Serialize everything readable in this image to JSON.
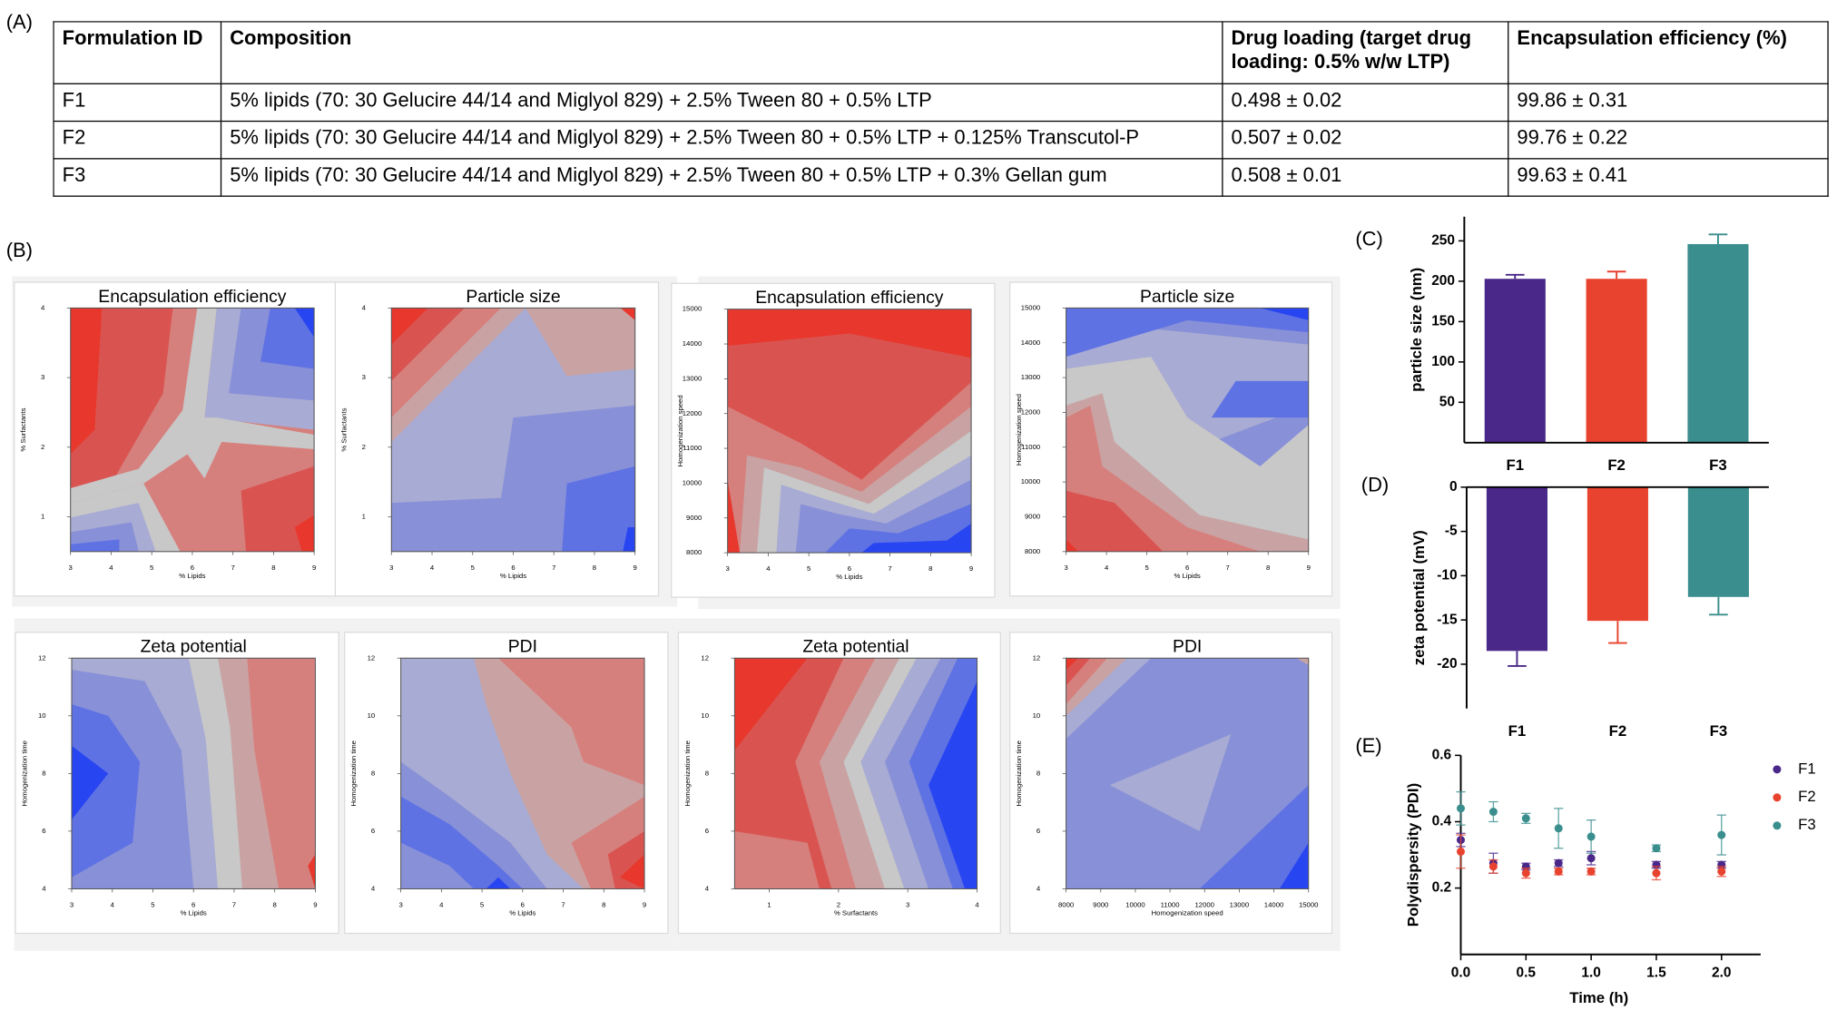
{
  "panel_labels": [
    "(A)",
    "(B)",
    "(C)",
    "(D)",
    "(E)"
  ],
  "table": {
    "header": [
      "Formulation ID",
      "Composition",
      "Drug loading (target drug loading: 0.5% w/w LTP)",
      "Encapsulation efficiency (%)"
    ],
    "rows": [
      [
        "F1",
        "5% lipids (70: 30 Gelucire 44/14 and Miglyol 829) + 2.5% Tween 80 + 0.5% LTP",
        "0.498 ± 0.02",
        "99.86 ± 0.31"
      ],
      [
        "F2",
        "5% lipids (70: 30 Gelucire 44/14 and Miglyol 829) + 2.5% Tween 80 + 0.5% LTP + 0.125% Transcutol-P",
        "0.507 ± 0.02",
        "99.76 ± 0.22"
      ],
      [
        "F3",
        "5% lipids (70: 30 Gelucire 44/14 and Miglyol 829) + 2.5% Tween 80 + 0.5% LTP + 0.3% Gellan gum",
        "0.508 ± 0.01",
        "99.63 ± 0.41"
      ]
    ]
  },
  "chart_data": [
    {
      "type": "contour",
      "title": "Encapsulation efficiency",
      "xlabel": "% Lipids",
      "ylabel": "% Surfactants",
      "xlim": [
        3,
        9
      ],
      "ylim": [
        0.5,
        4
      ],
      "xticks": [
        3,
        4,
        5,
        6,
        7,
        8,
        9
      ],
      "yticks": [
        1,
        2,
        3,
        4
      ]
    },
    {
      "type": "contour",
      "title": "Particle size",
      "xlabel": "% Lipids",
      "ylabel": "% Surfactants",
      "xlim": [
        3,
        9
      ],
      "ylim": [
        0.5,
        4
      ],
      "xticks": [
        3,
        4,
        5,
        6,
        7,
        8,
        9
      ],
      "yticks": [
        1,
        2,
        3,
        4
      ]
    },
    {
      "type": "contour",
      "title": "Encapsulation efficiency",
      "xlabel": "% Lipids",
      "ylabel": "Homogenization speed",
      "xlim": [
        3,
        9
      ],
      "ylim": [
        8000,
        15000
      ],
      "xticks": [
        3,
        4,
        5,
        6,
        7,
        8,
        9
      ],
      "yticks": [
        8000,
        9000,
        10000,
        11000,
        12000,
        13000,
        14000,
        15000
      ]
    },
    {
      "type": "contour",
      "title": "Particle size",
      "xlabel": "% Lipids",
      "ylabel": "Homogenization speed",
      "xlim": [
        3,
        9
      ],
      "ylim": [
        8000,
        15000
      ],
      "xticks": [
        3,
        4,
        5,
        6,
        7,
        8,
        9
      ],
      "yticks": [
        8000,
        9000,
        10000,
        11000,
        12000,
        13000,
        14000,
        15000
      ]
    },
    {
      "type": "contour",
      "title": "Zeta potential",
      "xlabel": "% Lipids",
      "ylabel": "Homogenization time",
      "xlim": [
        3,
        9
      ],
      "ylim": [
        4,
        12
      ],
      "xticks": [
        3,
        4,
        5,
        6,
        7,
        8,
        9
      ],
      "yticks": [
        4,
        6,
        8,
        10,
        12
      ]
    },
    {
      "type": "contour",
      "title": "PDI",
      "xlabel": "% Lipids",
      "ylabel": "Homogenization time",
      "xlim": [
        3,
        9
      ],
      "ylim": [
        4,
        12
      ],
      "xticks": [
        3,
        4,
        5,
        6,
        7,
        8,
        9
      ],
      "yticks": [
        4,
        6,
        8,
        10,
        12
      ]
    },
    {
      "type": "contour",
      "title": "Zeta potential",
      "xlabel": "% Surfactants",
      "ylabel": "Homogenization time",
      "xlim": [
        0.5,
        4
      ],
      "ylim": [
        4,
        12
      ],
      "xticks": [
        1,
        2,
        3,
        4
      ],
      "yticks": [
        4,
        6,
        8,
        10,
        12
      ]
    },
    {
      "type": "contour",
      "title": "PDI",
      "xlabel": "Homogenization speed",
      "ylabel": "Homogenization time",
      "xlim": [
        8000,
        15000
      ],
      "ylim": [
        4,
        12
      ],
      "xticks": [
        8000,
        9000,
        10000,
        11000,
        12000,
        13000,
        14000,
        15000
      ],
      "yticks": [
        4,
        6,
        8,
        10,
        12
      ]
    },
    {
      "type": "bar",
      "ylabel": "particle size (nm)",
      "categories": [
        "F1",
        "F2",
        "F3"
      ],
      "values": [
        203,
        203,
        246
      ],
      "errors": [
        5,
        9,
        12
      ],
      "colors": [
        "#4a2889",
        "#e8432e",
        "#3b8e8e"
      ],
      "ylim": [
        0,
        280
      ],
      "yticks": [
        50,
        100,
        150,
        200,
        250
      ]
    },
    {
      "type": "bar",
      "ylabel": "zeta potential (mV)",
      "categories": [
        "F1",
        "F2",
        "F3"
      ],
      "values": [
        -18.5,
        -15.1,
        -12.4
      ],
      "errors": [
        1.7,
        2.5,
        2.0
      ],
      "colors": [
        "#4a2889",
        "#e8432e",
        "#3b8e8e"
      ],
      "ylim": [
        -25,
        0
      ],
      "yticks": [
        0,
        -5,
        -10,
        -15,
        -20
      ]
    },
    {
      "type": "scatter",
      "xlabel": "Time (h)",
      "ylabel": "Polydispersity (PDI)",
      "legend": "right",
      "x": [
        0,
        0.25,
        0.5,
        0.75,
        1,
        1.5,
        2
      ],
      "xlim": [
        0,
        2.3
      ],
      "xticks": [
        {
          "value": 0,
          "label": "0.0"
        },
        0.5,
        {
          "value": 1,
          "label": "1.0"
        },
        1.5,
        {
          "value": 2,
          "label": "2.0"
        }
      ],
      "ylim": [
        0,
        0.6
      ],
      "yticks": [
        0.2,
        0.4,
        0.6
      ],
      "series": [
        {
          "name": "F1",
          "color": "#4a2889",
          "values": [
            0.345,
            0.275,
            0.265,
            0.275,
            0.29,
            0.27,
            0.27
          ],
          "errors": [
            0.02,
            0.03,
            0.01,
            0.01,
            0.02,
            0.01,
            0.01
          ]
        },
        {
          "name": "F2",
          "color": "#e8432e",
          "values": [
            0.31,
            0.265,
            0.245,
            0.25,
            0.25,
            0.245,
            0.25
          ],
          "errors": [
            0.05,
            0.02,
            0.015,
            0.01,
            0.01,
            0.02,
            0.015
          ]
        },
        {
          "name": "F3",
          "color": "#3b8e8e",
          "values": [
            0.44,
            0.43,
            0.41,
            0.38,
            0.355,
            0.32,
            0.36
          ],
          "errors": [
            0.05,
            0.03,
            0.015,
            0.06,
            0.05,
            0.01,
            0.06
          ]
        }
      ]
    }
  ]
}
